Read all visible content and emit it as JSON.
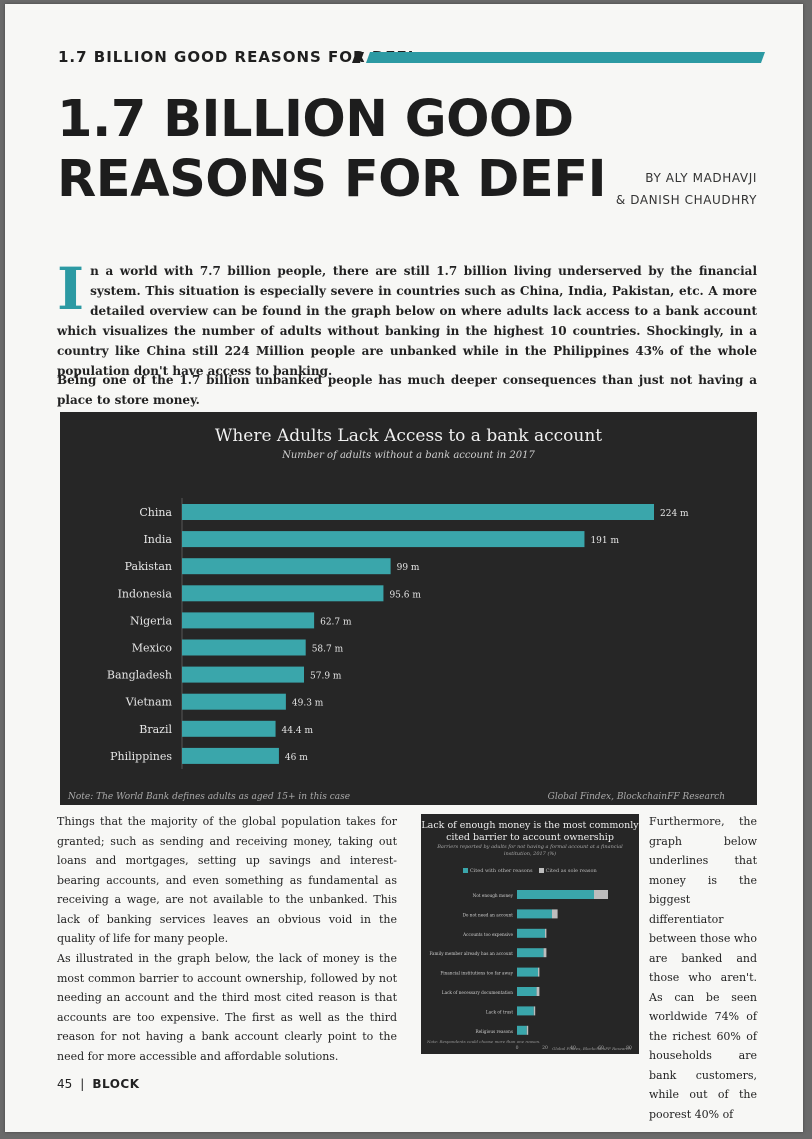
{
  "header": {
    "section_title": "1.7 BILLION GOOD REASONS FOR DEFI",
    "accent_color": "#2c9aa3"
  },
  "article": {
    "title": "1.7 BILLION GOOD\nREASONS FOR DEFI",
    "byline_1": "BY ALY MADHAVJI",
    "byline_2": "& DANISH CHAUDHRY",
    "dropcap": "I",
    "intro": "n a world with 7.7 billion people, there are still 1.7 billion living underserved by the financial system. This situation is especially severe in countries such as China, India, Pakistan, etc. A more detailed overview can be found in the graph below on where adults lack access to a bank account which visualizes the number of adults without banking in the highest 10 countries.  Shockingly, in a country like China still 224 Million people are unbanked while in the Philippines 43% of  the whole population don't have access to banking.",
    "para2": "Being one of the 1.7 billion unbanked people has much deeper consequences than just not having a place to store money.",
    "col1_p1": "Things that the majority of the global population takes for granted; such as sending and receiving money, taking out loans and mortgages, setting up savings and interest-bearing accounts, and even something as fundamental as receiving a wage, are not available to the unbanked. This lack of banking services leaves an obvious void in the quality of life for many people.",
    "col1_p2": "As illustrated in the graph below, the lack of money is the most common barrier to account ownership, followed by not needing an account and the third most cited reason is that accounts are too expensive. The first as well as the third reason for not having a bank account clearly point to the need for more accessible and affordable solutions.",
    "col3": "Furthermore, the graph below underlines that money is the biggest differentiator between those who are banked and those who aren't. As can be seen worldwide 74% of the richest 60% of households are bank customers, while out of the poorest 40% of"
  },
  "chart_data": [
    {
      "type": "bar",
      "orientation": "horizontal",
      "title": "Where Adults Lack Access to a bank account",
      "subtitle": "Number of adults without a bank account in 2017",
      "categories": [
        "China",
        "India",
        "Pakistan",
        "Indonesia",
        "Nigeria",
        "Mexico",
        "Bangladesh",
        "Vietnam",
        "Brazil",
        "Philippines"
      ],
      "values": [
        224,
        191,
        99,
        95.6,
        62.7,
        58.7,
        57.9,
        49.3,
        44.4,
        46
      ],
      "value_labels": [
        "224 m",
        "191 m",
        "99 m",
        "95.6 m",
        "62.7 m",
        "58.7 m",
        "57.9 m",
        "49.3 m",
        "44.4 m",
        "46 m"
      ],
      "xlim": [
        0,
        224
      ],
      "bar_color": "#3aa6ab",
      "note": "Note: The World Bank defines adults as aged 15+ in this case",
      "source": "Global Findex, BlockchainFF Research"
    },
    {
      "type": "bar",
      "orientation": "horizontal",
      "stacked": true,
      "title": "Lack of enough money is the most commonly\ncited barrier to account ownership",
      "subtitle": "Barriers reported by adults for not having a formal account at a financial institution, 2017 (%)",
      "legend": [
        "Cited with other reasons",
        "Cited as sole reason"
      ],
      "categories": [
        "Not enough money",
        "Do not need an account",
        "Accounts too expensive",
        "Family member already has an account",
        "Financial institutions too far away",
        "Lack of necessary documentation",
        "Lack of trust",
        "Religious reasons"
      ],
      "series": [
        {
          "name": "Cited with other reasons",
          "values": [
            55,
            25,
            20,
            19,
            15,
            14,
            12,
            7
          ]
        },
        {
          "name": "Cited as sole reason",
          "values": [
            10,
            4,
            1,
            2,
            1,
            2,
            1,
            1
          ]
        }
      ],
      "xticks": [
        "0",
        "20",
        "40",
        "60",
        "80"
      ],
      "xlim": [
        0,
        80
      ],
      "colors": [
        "#3aa6ab",
        "#bdbdbd"
      ],
      "note": "Note: Respondents could choose more than one reason.",
      "source": "Global Findex, BlockchainFF Research"
    }
  ],
  "footer": {
    "page_number": "45",
    "separator": "|",
    "brand": "BLOCK"
  }
}
